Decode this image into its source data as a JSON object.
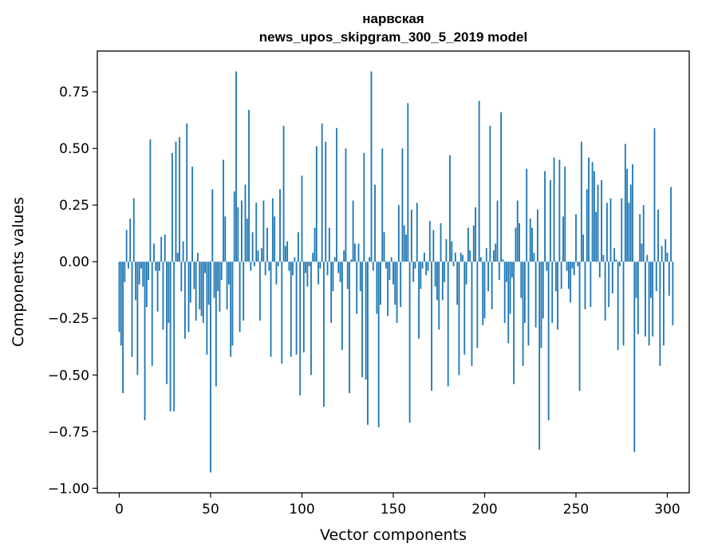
{
  "chart_data": {
    "type": "bar",
    "title": "нарвская",
    "subtitle": "news_upos_skipgram_300_5_2019 model",
    "xlabel": "Vector components",
    "ylabel": "Components values",
    "xlim": [
      -12,
      312
    ],
    "ylim": [
      -1.02,
      0.93
    ],
    "xticks": [
      0,
      50,
      100,
      150,
      200,
      250,
      300
    ],
    "xtick_labels": [
      "0",
      "50",
      "100",
      "150",
      "200",
      "250",
      "300"
    ],
    "yticks": [
      -1.0,
      -0.75,
      -0.5,
      -0.25,
      0.0,
      0.25,
      0.5,
      0.75
    ],
    "ytick_labels": [
      "−1.00",
      "−0.75",
      "−0.50",
      "−0.25",
      "0.00",
      "0.25",
      "0.50",
      "0.75"
    ],
    "bar_color": "#1f77b4",
    "grid": false,
    "values": [
      -0.31,
      -0.37,
      -0.58,
      -0.09,
      0.14,
      -0.03,
      0.19,
      -0.42,
      0.28,
      -0.17,
      -0.5,
      -0.1,
      -0.03,
      -0.11,
      -0.7,
      -0.2,
      -0.08,
      0.54,
      -0.46,
      0.08,
      -0.04,
      -0.22,
      -0.04,
      0.11,
      -0.3,
      0.12,
      -0.54,
      -0.27,
      -0.66,
      0.48,
      -0.66,
      0.53,
      0.04,
      0.55,
      -0.13,
      0.09,
      -0.34,
      0.61,
      -0.31,
      -0.18,
      0.42,
      -0.12,
      -0.26,
      0.04,
      -0.21,
      -0.24,
      -0.27,
      -0.05,
      -0.41,
      -0.19,
      -0.93,
      0.32,
      -0.16,
      -0.55,
      -0.13,
      -0.22,
      -0.08,
      0.45,
      0.2,
      -0.21,
      -0.1,
      -0.42,
      -0.37,
      0.31,
      0.84,
      0.24,
      -0.31,
      0.27,
      -0.26,
      0.34,
      0.19,
      0.67,
      -0.04,
      0.13,
      -0.02,
      0.26,
      0.05,
      -0.26,
      0.06,
      0.27,
      -0.06,
      0.15,
      -0.04,
      -0.42,
      0.28,
      0.2,
      -0.1,
      -0.02,
      0.32,
      -0.45,
      0.6,
      0.07,
      0.09,
      -0.04,
      -0.42,
      -0.06,
      0.02,
      -0.41,
      0.13,
      -0.59,
      0.38,
      -0.4,
      -0.05,
      -0.11,
      -0.02,
      -0.5,
      0.04,
      0.15,
      0.51,
      -0.1,
      -0.03,
      0.61,
      -0.64,
      0.53,
      -0.06,
      0.15,
      -0.27,
      -0.13,
      0.02,
      0.59,
      -0.05,
      -0.09,
      -0.39,
      0.05,
      0.5,
      -0.12,
      -0.58,
      0.01,
      0.27,
      0.08,
      -0.23,
      0.08,
      -0.13,
      -0.51,
      0.48,
      -0.52,
      -0.72,
      0.02,
      0.84,
      -0.04,
      0.34,
      -0.23,
      -0.73,
      -0.19,
      0.5,
      0.13,
      -0.03,
      -0.24,
      -0.08,
      0.02,
      -0.1,
      -0.19,
      -0.27,
      0.25,
      -0.2,
      0.5,
      0.16,
      0.12,
      0.7,
      -0.71,
      0.23,
      -0.09,
      -0.03,
      0.26,
      -0.34,
      -0.12,
      -0.03,
      0.04,
      -0.06,
      -0.04,
      0.18,
      -0.57,
      0.14,
      -0.11,
      -0.17,
      -0.3,
      0.17,
      -0.17,
      -0.09,
      0.1,
      -0.55,
      0.47,
      0.09,
      -0.02,
      0.04,
      -0.19,
      -0.5,
      0.04,
      0.03,
      -0.41,
      -0.1,
      0.15,
      0.05,
      -0.46,
      0.16,
      0.24,
      -0.38,
      0.71,
      0.02,
      -0.28,
      -0.25,
      0.06,
      -0.13,
      0.6,
      -0.21,
      0.05,
      0.08,
      0.27,
      -0.08,
      0.66,
      0.01,
      -0.27,
      -0.09,
      -0.36,
      -0.23,
      -0.07,
      -0.54,
      0.15,
      0.27,
      0.17,
      -0.16,
      -0.46,
      -0.27,
      0.41,
      -0.37,
      0.19,
      0.15,
      0.04,
      -0.29,
      0.23,
      -0.83,
      -0.38,
      -0.25,
      0.4,
      -0.04,
      -0.7,
      0.36,
      -0.27,
      0.46,
      -0.13,
      -0.3,
      0.45,
      -0.12,
      0.2,
      0.42,
      -0.04,
      -0.12,
      -0.18,
      -0.03,
      -0.06,
      0.21,
      -0.02,
      -0.57,
      0.53,
      0.12,
      -0.21,
      0.32,
      0.46,
      -0.2,
      0.44,
      0.4,
      0.22,
      0.34,
      -0.07,
      0.36,
      0.03,
      -0.26,
      0.26,
      -0.2,
      0.28,
      -0.14,
      0.06,
      0.01,
      -0.39,
      -0.02,
      0.28,
      -0.37,
      0.52,
      0.41,
      0.26,
      0.34,
      0.43,
      -0.84,
      -0.16,
      -0.32,
      0.21,
      0.08,
      0.25,
      -0.33,
      0.03,
      -0.37,
      -0.16,
      -0.33,
      0.59,
      -0.13,
      0.23,
      -0.46,
      0.07,
      -0.37,
      0.1,
      0.04,
      -0.15,
      0.33,
      -0.28
    ]
  }
}
